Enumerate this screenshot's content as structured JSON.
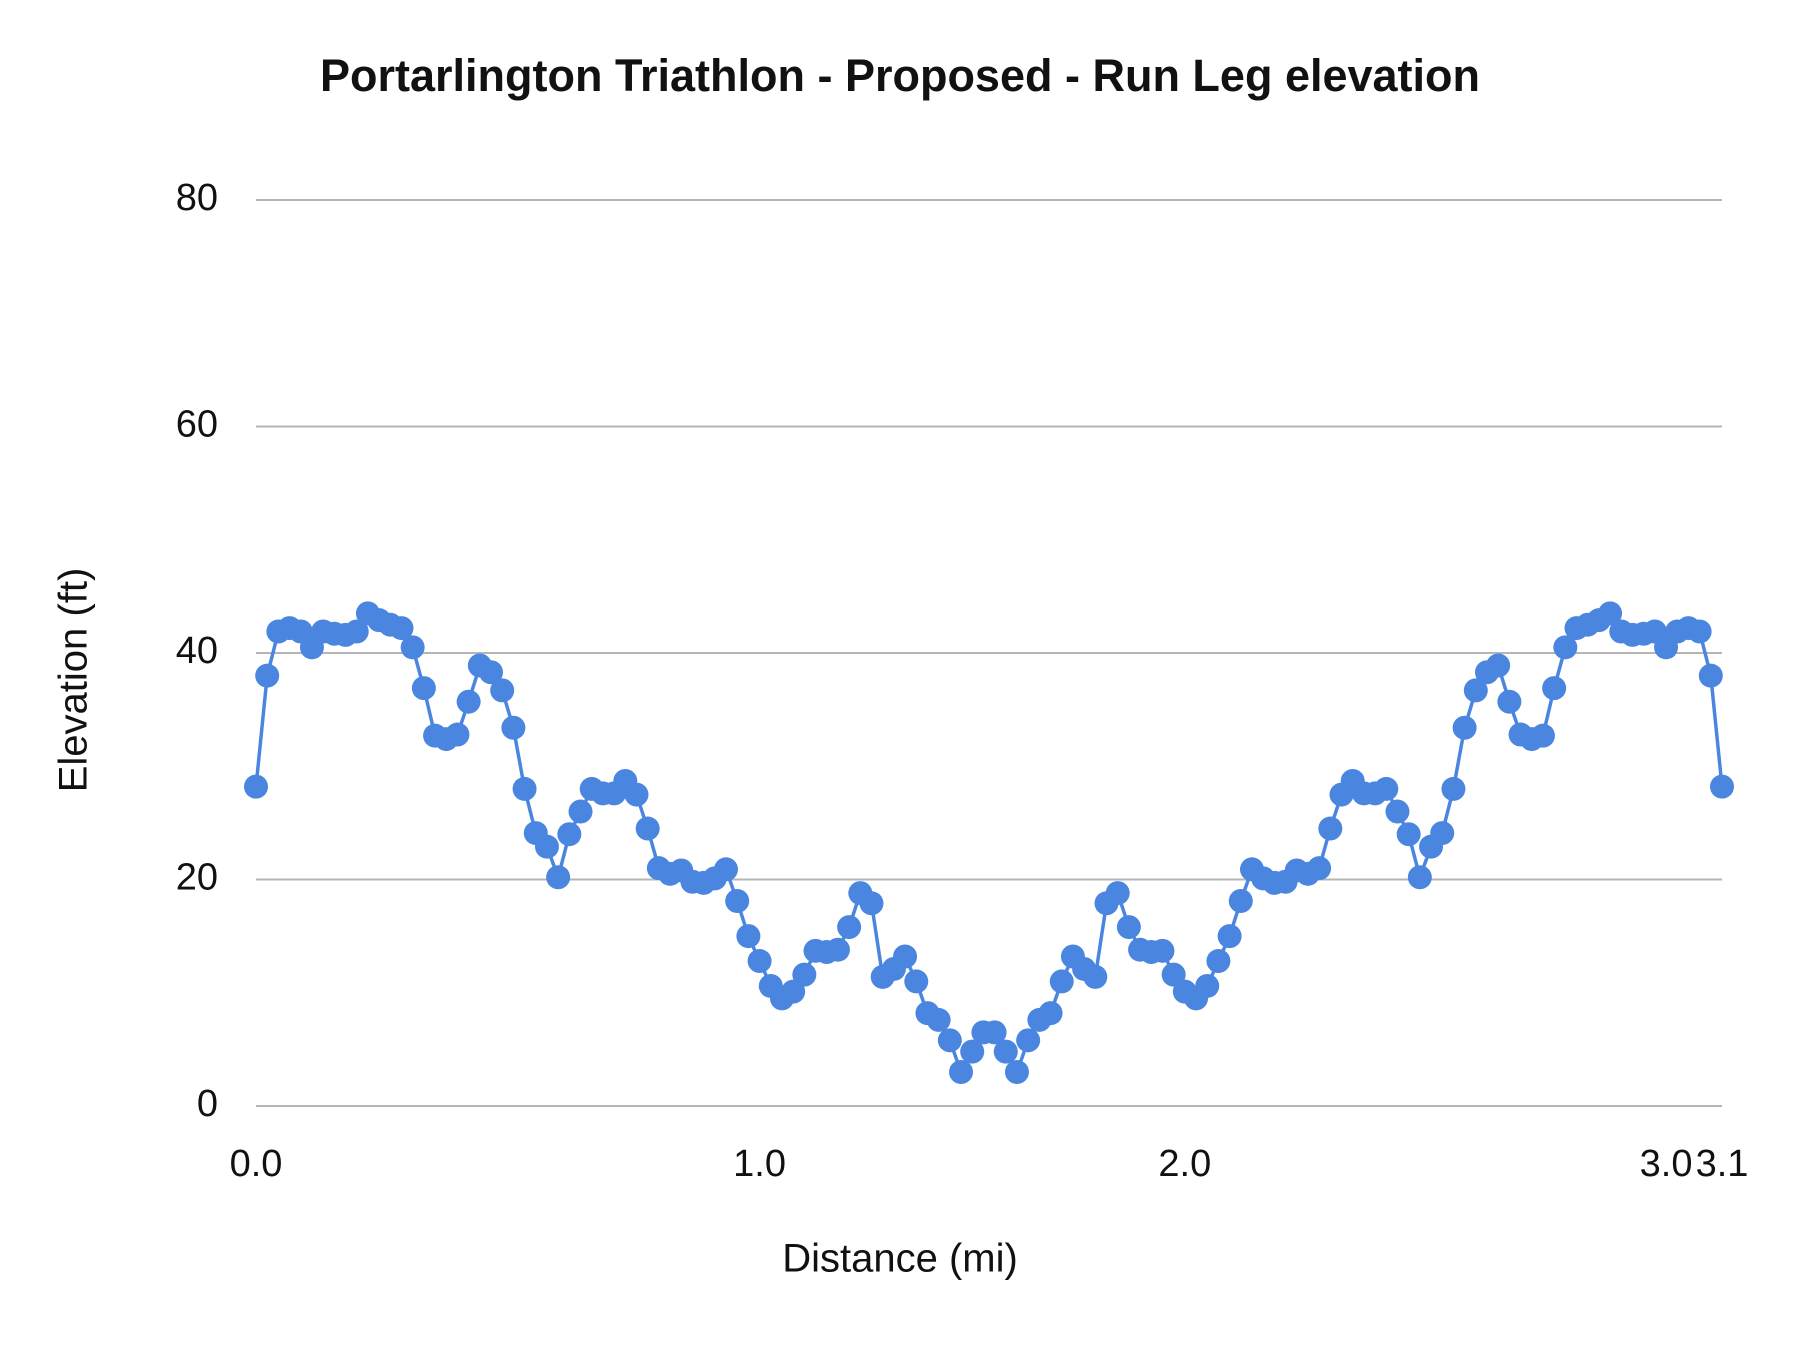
{
  "chart_data": {
    "type": "line",
    "title": "Portarlington Triathlon - Proposed  - Run Leg elevation",
    "x_label": "Distance (mi)",
    "y_label": "Elevation (ft)",
    "categories": [
      "0.0",
      null,
      null,
      null,
      null,
      null,
      null,
      null,
      null,
      null,
      null,
      null,
      null,
      null,
      null,
      null,
      null,
      null,
      null,
      null,
      null,
      null,
      null,
      null,
      null,
      null,
      null,
      null,
      null,
      null,
      null,
      null,
      null,
      null,
      null,
      null,
      null,
      null,
      null,
      null,
      null,
      null,
      null,
      null,
      null,
      "1.0",
      null,
      null,
      null,
      null,
      null,
      null,
      null,
      null,
      null,
      null,
      null,
      null,
      null,
      null,
      null,
      null,
      null,
      null,
      null,
      null,
      null,
      null,
      null,
      null,
      null,
      null,
      null,
      null,
      null,
      null,
      null,
      null,
      null,
      null,
      null,
      null,
      null,
      "2.0",
      null,
      null,
      null,
      null,
      null,
      null,
      null,
      null,
      null,
      null,
      null,
      null,
      null,
      null,
      null,
      null,
      null,
      null,
      null,
      null,
      null,
      null,
      null,
      null,
      null,
      null,
      null,
      null,
      null,
      null,
      null,
      null,
      null,
      null,
      null,
      null,
      null,
      null,
      null,
      null,
      null,
      null,
      "3.0",
      null,
      null,
      null,
      null,
      "3.1"
    ],
    "series": [
      {
        "name": "Elevation",
        "color": "#4a86e0",
        "values": [
          28.2,
          38.0,
          41.9,
          42.2,
          41.9,
          40.5,
          41.9,
          41.7,
          41.6,
          41.9,
          43.5,
          42.9,
          42.5,
          42.2,
          40.5,
          36.9,
          32.7,
          32.4,
          32.8,
          35.7,
          38.9,
          38.3,
          36.7,
          33.4,
          28.0,
          24.1,
          22.9,
          20.2,
          24.0,
          26.0,
          28.0,
          27.6,
          27.6,
          28.7,
          27.5,
          24.5,
          21.0,
          20.5,
          20.8,
          19.8,
          19.7,
          20.1,
          20.9,
          18.1,
          15.0,
          12.8,
          10.6,
          9.5,
          10.1,
          11.6,
          13.7,
          13.6,
          13.8,
          15.8,
          18.8,
          17.9,
          11.4,
          12.1,
          13.2,
          11.0,
          8.2,
          7.6,
          5.8,
          3.0,
          4.8,
          6.5,
          6.5,
          4.8,
          3.0,
          5.8,
          7.6,
          8.2,
          11.0,
          13.2,
          12.1,
          11.4,
          17.9,
          18.8,
          15.8,
          13.8,
          13.6,
          13.7,
          11.6,
          10.1,
          9.5,
          10.6,
          12.8,
          15.0,
          18.1,
          20.9,
          20.1,
          19.7,
          19.8,
          20.8,
          20.5,
          21.0,
          24.5,
          27.5,
          28.7,
          27.6,
          27.6,
          28.0,
          26.0,
          24.0,
          20.2,
          22.9,
          24.1,
          28.0,
          33.4,
          36.7,
          38.3,
          38.9,
          35.7,
          32.8,
          32.4,
          32.7,
          36.9,
          40.5,
          42.2,
          42.5,
          42.9,
          43.5,
          41.9,
          41.6,
          41.7,
          41.9,
          40.5,
          41.9,
          42.2,
          41.9,
          38.0,
          28.2
        ]
      }
    ],
    "ylim": [
      0,
      80
    ],
    "yticks": [
      0,
      20,
      40,
      60,
      80
    ],
    "grid": true
  }
}
